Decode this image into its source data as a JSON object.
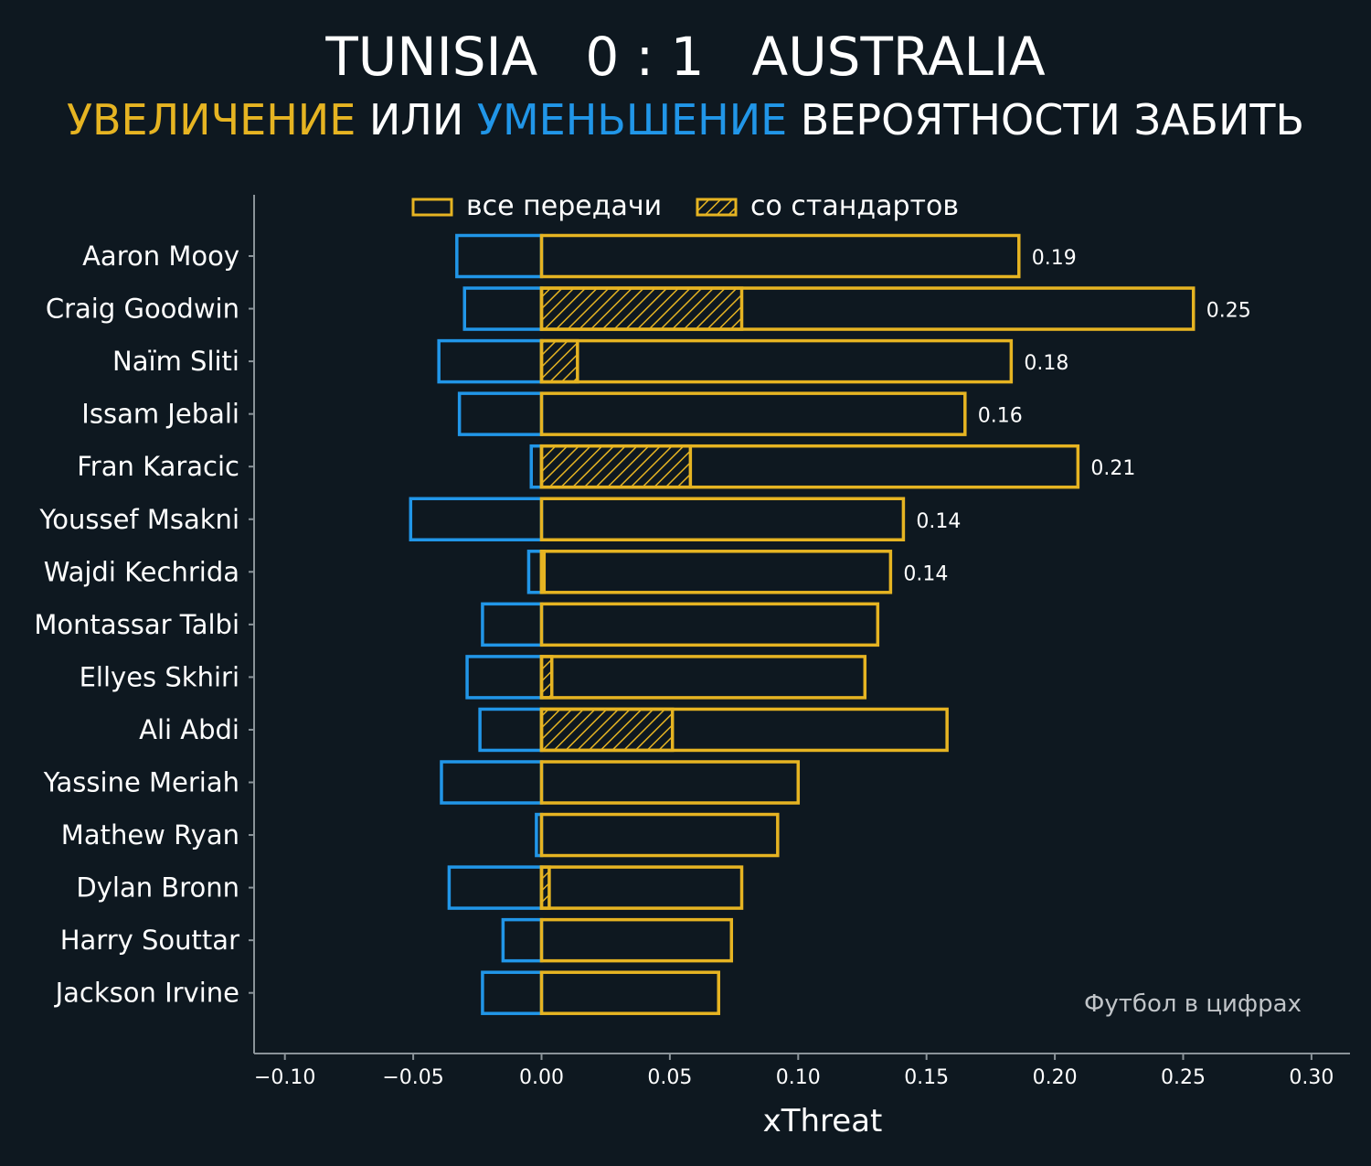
{
  "header": {
    "home_team": "TUNISIA",
    "score": "0 : 1",
    "away_team": "AUSTRALIA",
    "subtitle_part1": "УВЕЛИЧЕНИЕ",
    "subtitle_part2": " ИЛИ ",
    "subtitle_part3": "УМЕНЬШЕНИЕ",
    "subtitle_part4": " ВЕРОЯТНОСТИ ЗАБИТЬ"
  },
  "colors": {
    "background": "#0e1820",
    "increase": "#e6b422",
    "decrease": "#2196e8",
    "axis": "#8a9399"
  },
  "legend": {
    "all_passes": "все передачи",
    "set_pieces": "со стандартов"
  },
  "credit": "Футбол в цифрах",
  "chart_data": {
    "type": "bar",
    "orientation": "horizontal",
    "xlabel": "xThreat",
    "xlim": [
      -0.112,
      0.315
    ],
    "xticks": [
      -0.1,
      -0.05,
      0.0,
      0.05,
      0.1,
      0.15,
      0.2,
      0.25,
      0.3
    ],
    "xtick_labels": [
      "−0.10",
      "−0.05",
      "0.00",
      "0.05",
      "0.10",
      "0.15",
      "0.20",
      "0.25",
      "0.30"
    ],
    "categories": [
      "Aaron Mooy",
      "Craig Goodwin",
      "Naïm Sliti",
      "Issam Jebali",
      "Fran Karacic",
      "Youssef Msakni",
      "Wajdi Kechrida",
      "Montassar Talbi",
      "Ellyes Skhiri",
      "Ali Abdi",
      "Yassine Meriah",
      "Mathew Ryan",
      "Dylan Bronn",
      "Harry Souttar",
      "Jackson Irvine"
    ],
    "series": [
      {
        "name": "все передачи",
        "values": [
          0.186,
          0.254,
          0.183,
          0.165,
          0.209,
          0.141,
          0.136,
          0.131,
          0.126,
          0.158,
          0.1,
          0.092,
          0.078,
          0.074,
          0.069
        ]
      },
      {
        "name": "со стандартов",
        "values": [
          0.0,
          0.078,
          0.014,
          0.0,
          0.058,
          0.0,
          0.001,
          0.0,
          0.004,
          0.051,
          0.0,
          0.0,
          0.003,
          0.0,
          0.0
        ]
      },
      {
        "values": [
          -0.033,
          -0.03,
          -0.04,
          -0.032,
          -0.004,
          -0.051,
          -0.005,
          -0.023,
          -0.029,
          -0.024,
          -0.039,
          -0.002,
          -0.036,
          -0.015,
          -0.023
        ]
      }
    ],
    "value_labels": [
      "0.19",
      "0.25",
      "0.18",
      "0.16",
      "0.21",
      "0.14",
      "0.14",
      "",
      "",
      "",
      "",
      "",
      "",
      "",
      ""
    ],
    "legend_position": "top",
    "grid": false
  }
}
